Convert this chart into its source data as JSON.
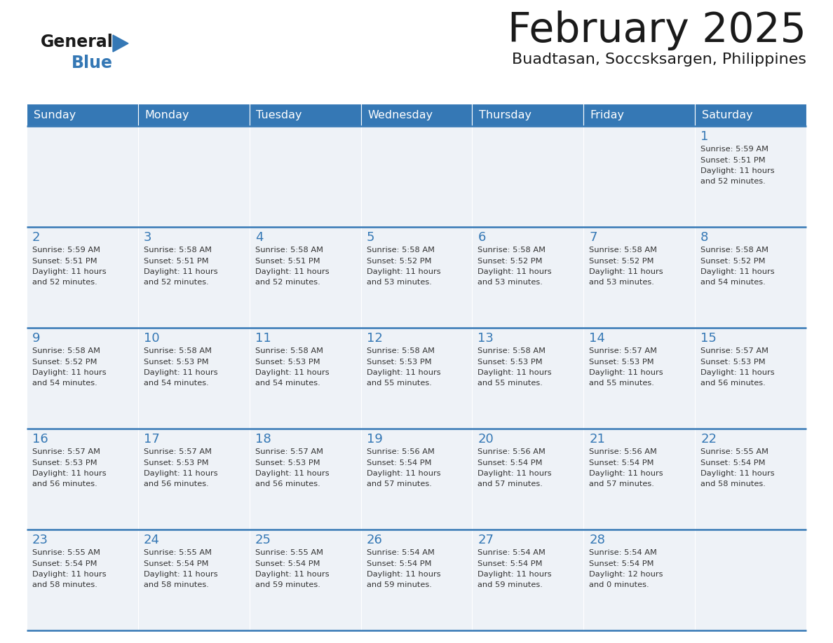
{
  "title": "February 2025",
  "subtitle": "Buadtasan, Soccsksargen, Philippines",
  "header_color": "#3578b5",
  "header_text_color": "#ffffff",
  "cell_bg_color": "#eef2f7",
  "outer_bg_color": "#ffffff",
  "title_color": "#1a1a1a",
  "subtitle_color": "#1a1a1a",
  "day_number_color": "#3578b5",
  "text_color": "#333333",
  "line_color": "#3578b5",
  "days_of_week": [
    "Sunday",
    "Monday",
    "Tuesday",
    "Wednesday",
    "Thursday",
    "Friday",
    "Saturday"
  ],
  "logo_general_color": "#1a1a1a",
  "logo_blue_color": "#3578b5",
  "logo_triangle_color": "#3578b5",
  "weeks": [
    [
      {
        "day": "",
        "sunrise": "",
        "sunset": "",
        "daylight_h": "",
        "daylight_m": ""
      },
      {
        "day": "",
        "sunrise": "",
        "sunset": "",
        "daylight_h": "",
        "daylight_m": ""
      },
      {
        "day": "",
        "sunrise": "",
        "sunset": "",
        "daylight_h": "",
        "daylight_m": ""
      },
      {
        "day": "",
        "sunrise": "",
        "sunset": "",
        "daylight_h": "",
        "daylight_m": ""
      },
      {
        "day": "",
        "sunrise": "",
        "sunset": "",
        "daylight_h": "",
        "daylight_m": ""
      },
      {
        "day": "",
        "sunrise": "",
        "sunset": "",
        "daylight_h": "",
        "daylight_m": ""
      },
      {
        "day": "1",
        "sunrise": "5:59 AM",
        "sunset": "5:51 PM",
        "daylight_h": "11 hours",
        "daylight_m": "and 52 minutes."
      }
    ],
    [
      {
        "day": "2",
        "sunrise": "5:59 AM",
        "sunset": "5:51 PM",
        "daylight_h": "11 hours",
        "daylight_m": "and 52 minutes."
      },
      {
        "day": "3",
        "sunrise": "5:58 AM",
        "sunset": "5:51 PM",
        "daylight_h": "11 hours",
        "daylight_m": "and 52 minutes."
      },
      {
        "day": "4",
        "sunrise": "5:58 AM",
        "sunset": "5:51 PM",
        "daylight_h": "11 hours",
        "daylight_m": "and 52 minutes."
      },
      {
        "day": "5",
        "sunrise": "5:58 AM",
        "sunset": "5:52 PM",
        "daylight_h": "11 hours",
        "daylight_m": "and 53 minutes."
      },
      {
        "day": "6",
        "sunrise": "5:58 AM",
        "sunset": "5:52 PM",
        "daylight_h": "11 hours",
        "daylight_m": "and 53 minutes."
      },
      {
        "day": "7",
        "sunrise": "5:58 AM",
        "sunset": "5:52 PM",
        "daylight_h": "11 hours",
        "daylight_m": "and 53 minutes."
      },
      {
        "day": "8",
        "sunrise": "5:58 AM",
        "sunset": "5:52 PM",
        "daylight_h": "11 hours",
        "daylight_m": "and 54 minutes."
      }
    ],
    [
      {
        "day": "9",
        "sunrise": "5:58 AM",
        "sunset": "5:52 PM",
        "daylight_h": "11 hours",
        "daylight_m": "and 54 minutes."
      },
      {
        "day": "10",
        "sunrise": "5:58 AM",
        "sunset": "5:53 PM",
        "daylight_h": "11 hours",
        "daylight_m": "and 54 minutes."
      },
      {
        "day": "11",
        "sunrise": "5:58 AM",
        "sunset": "5:53 PM",
        "daylight_h": "11 hours",
        "daylight_m": "and 54 minutes."
      },
      {
        "day": "12",
        "sunrise": "5:58 AM",
        "sunset": "5:53 PM",
        "daylight_h": "11 hours",
        "daylight_m": "and 55 minutes."
      },
      {
        "day": "13",
        "sunrise": "5:58 AM",
        "sunset": "5:53 PM",
        "daylight_h": "11 hours",
        "daylight_m": "and 55 minutes."
      },
      {
        "day": "14",
        "sunrise": "5:57 AM",
        "sunset": "5:53 PM",
        "daylight_h": "11 hours",
        "daylight_m": "and 55 minutes."
      },
      {
        "day": "15",
        "sunrise": "5:57 AM",
        "sunset": "5:53 PM",
        "daylight_h": "11 hours",
        "daylight_m": "and 56 minutes."
      }
    ],
    [
      {
        "day": "16",
        "sunrise": "5:57 AM",
        "sunset": "5:53 PM",
        "daylight_h": "11 hours",
        "daylight_m": "and 56 minutes."
      },
      {
        "day": "17",
        "sunrise": "5:57 AM",
        "sunset": "5:53 PM",
        "daylight_h": "11 hours",
        "daylight_m": "and 56 minutes."
      },
      {
        "day": "18",
        "sunrise": "5:57 AM",
        "sunset": "5:53 PM",
        "daylight_h": "11 hours",
        "daylight_m": "and 56 minutes."
      },
      {
        "day": "19",
        "sunrise": "5:56 AM",
        "sunset": "5:54 PM",
        "daylight_h": "11 hours",
        "daylight_m": "and 57 minutes."
      },
      {
        "day": "20",
        "sunrise": "5:56 AM",
        "sunset": "5:54 PM",
        "daylight_h": "11 hours",
        "daylight_m": "and 57 minutes."
      },
      {
        "day": "21",
        "sunrise": "5:56 AM",
        "sunset": "5:54 PM",
        "daylight_h": "11 hours",
        "daylight_m": "and 57 minutes."
      },
      {
        "day": "22",
        "sunrise": "5:55 AM",
        "sunset": "5:54 PM",
        "daylight_h": "11 hours",
        "daylight_m": "and 58 minutes."
      }
    ],
    [
      {
        "day": "23",
        "sunrise": "5:55 AM",
        "sunset": "5:54 PM",
        "daylight_h": "11 hours",
        "daylight_m": "and 58 minutes."
      },
      {
        "day": "24",
        "sunrise": "5:55 AM",
        "sunset": "5:54 PM",
        "daylight_h": "11 hours",
        "daylight_m": "and 58 minutes."
      },
      {
        "day": "25",
        "sunrise": "5:55 AM",
        "sunset": "5:54 PM",
        "daylight_h": "11 hours",
        "daylight_m": "and 59 minutes."
      },
      {
        "day": "26",
        "sunrise": "5:54 AM",
        "sunset": "5:54 PM",
        "daylight_h": "11 hours",
        "daylight_m": "and 59 minutes."
      },
      {
        "day": "27",
        "sunrise": "5:54 AM",
        "sunset": "5:54 PM",
        "daylight_h": "11 hours",
        "daylight_m": "and 59 minutes."
      },
      {
        "day": "28",
        "sunrise": "5:54 AM",
        "sunset": "5:54 PM",
        "daylight_h": "12 hours",
        "daylight_m": "and 0 minutes."
      },
      {
        "day": "",
        "sunrise": "",
        "sunset": "",
        "daylight_h": "",
        "daylight_m": ""
      }
    ]
  ]
}
